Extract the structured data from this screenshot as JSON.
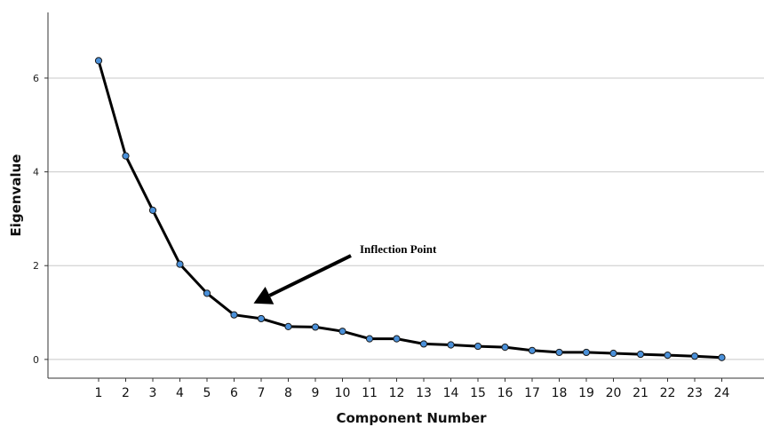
{
  "chart_data": {
    "type": "line",
    "title": "",
    "xlabel": "Component Number",
    "ylabel": "Eigenvalue",
    "categories": [
      "1",
      "2",
      "3",
      "4",
      "5",
      "6",
      "7",
      "8",
      "9",
      "10",
      "11",
      "12",
      "13",
      "14",
      "15",
      "16",
      "17",
      "18",
      "19",
      "20",
      "21",
      "22",
      "23",
      "24"
    ],
    "series": [
      {
        "values": [
          6.37,
          4.34,
          3.18,
          2.03,
          1.41,
          0.95,
          0.87,
          0.7,
          0.69,
          0.6,
          0.44,
          0.44,
          0.33,
          0.31,
          0.28,
          0.26,
          0.19,
          0.15,
          0.15,
          0.13,
          0.11,
          0.09,
          0.07,
          0.04
        ]
      }
    ],
    "yticks": [
      "0",
      "2",
      "4",
      "6"
    ],
    "ylim": [
      -0.4,
      7.4
    ],
    "grid": "horizontal",
    "legend": "none",
    "annotations": [
      {
        "text": "Inflection Point",
        "points_to_category": "6"
      }
    ]
  },
  "colors": {
    "line": "#000000",
    "marker_fill": "#4a90d9",
    "marker_stroke": "#1a1a1a",
    "grid": "#c8c8c8"
  }
}
